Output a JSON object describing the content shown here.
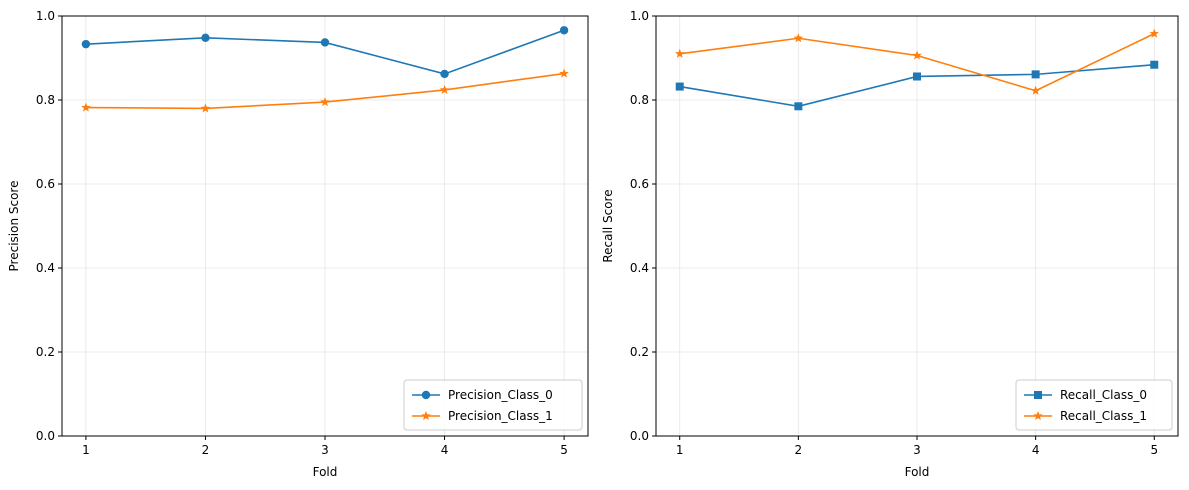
{
  "chart_data": [
    {
      "type": "line",
      "title": "",
      "xlabel": "Fold",
      "ylabel": "Precision Score",
      "x": [
        1,
        2,
        3,
        4,
        5
      ],
      "xticks": [
        "1",
        "2",
        "3",
        "4",
        "5"
      ],
      "xlim": [
        0.8,
        5.2
      ],
      "ylim": [
        0.0,
        1.0
      ],
      "yticks": [
        "0.0",
        "0.2",
        "0.4",
        "0.6",
        "0.8",
        "1.0"
      ],
      "grid": true,
      "legend_position": "lower-right",
      "series": [
        {
          "name": "Precision_Class_0",
          "values": [
            0.933,
            0.948,
            0.937,
            0.862,
            0.966
          ],
          "color": "#1f77b4",
          "marker": "circle"
        },
        {
          "name": "Precision_Class_1",
          "values": [
            0.782,
            0.78,
            0.795,
            0.824,
            0.863
          ],
          "color": "#ff7f0e",
          "marker": "star"
        }
      ]
    },
    {
      "type": "line",
      "title": "",
      "xlabel": "Fold",
      "ylabel": "Recall Score",
      "x": [
        1,
        2,
        3,
        4,
        5
      ],
      "xticks": [
        "1",
        "2",
        "3",
        "4",
        "5"
      ],
      "xlim": [
        0.8,
        5.2
      ],
      "ylim": [
        0.0,
        1.0
      ],
      "yticks": [
        "0.0",
        "0.2",
        "0.4",
        "0.6",
        "0.8",
        "1.0"
      ],
      "grid": true,
      "legend_position": "lower-right",
      "series": [
        {
          "name": "Recall_Class_0",
          "values": [
            0.832,
            0.785,
            0.856,
            0.861,
            0.884
          ],
          "color": "#1f77b4",
          "marker": "square"
        },
        {
          "name": "Recall_Class_1",
          "values": [
            0.91,
            0.947,
            0.906,
            0.822,
            0.958
          ],
          "color": "#ff7f0e",
          "marker": "star"
        }
      ]
    }
  ]
}
